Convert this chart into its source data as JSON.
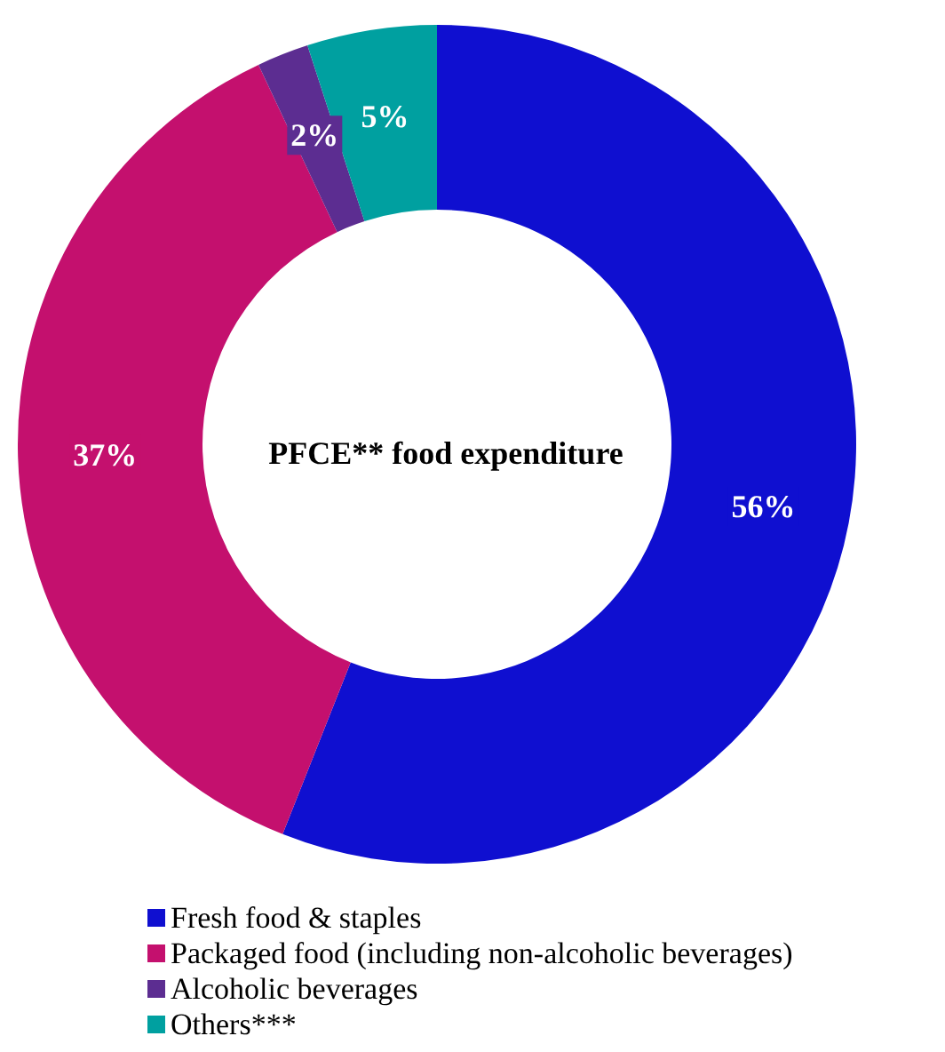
{
  "chart_data": {
    "type": "donut",
    "title": "PFCE** food expenditure",
    "categories": [
      "Fresh food & staples",
      "Packaged food (including non-alcoholic beverages)",
      "Alcoholic beverages",
      "Others***"
    ],
    "values": [
      56,
      37,
      2,
      5
    ],
    "colors": [
      "#0f0fd0",
      "#c4106e",
      "#5c2d91",
      "#00a0a0"
    ],
    "value_labels": [
      "56%",
      "37%",
      "2%",
      "5%"
    ],
    "legend": "bottom left"
  }
}
